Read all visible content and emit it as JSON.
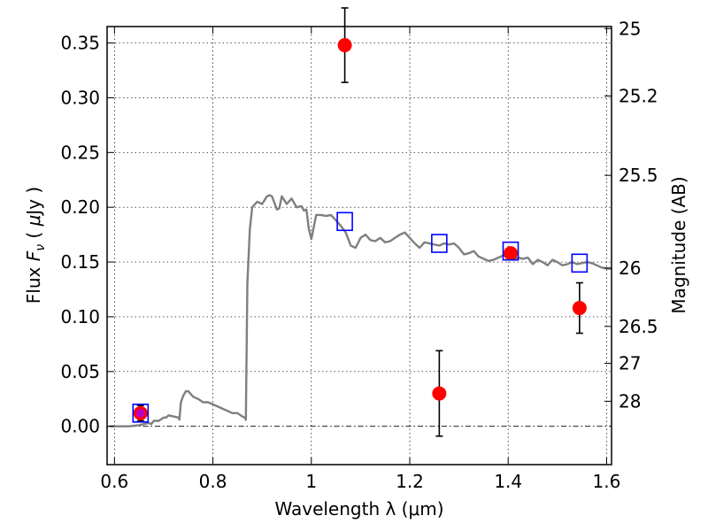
{
  "chart_data": {
    "type": "scatter",
    "xlabel": "Wavelength  λ (μm)",
    "ylabel": "Flux  F_ν  ( μJy )",
    "ylabel_parts": {
      "pre": "Flux  ",
      "sym": "F",
      "sub": "ν",
      "mid": "  ( ",
      "mu": "μ",
      "post": "Jy )"
    },
    "ylabel_right": "Magnitude (AB)",
    "xlim": [
      0.585,
      1.61
    ],
    "ylim": [
      -0.035,
      0.365
    ],
    "grid": true,
    "x_ticks": [
      {
        "value": 0.6,
        "label": "0.6"
      },
      {
        "value": 0.8,
        "label": "0.8"
      },
      {
        "value": 1.0,
        "label": "1"
      },
      {
        "value": 1.2,
        "label": "1.2"
      },
      {
        "value": 1.4,
        "label": "1.4"
      },
      {
        "value": 1.6,
        "label": "1.6"
      }
    ],
    "y_ticks": [
      {
        "value": 0.0,
        "label": "0.00"
      },
      {
        "value": 0.05,
        "label": "0.05"
      },
      {
        "value": 0.1,
        "label": "0.10"
      },
      {
        "value": 0.15,
        "label": "0.15"
      },
      {
        "value": 0.2,
        "label": "0.20"
      },
      {
        "value": 0.25,
        "label": "0.25"
      },
      {
        "value": 0.3,
        "label": "0.30"
      },
      {
        "value": 0.35,
        "label": "0.35"
      }
    ],
    "y2_ticks": [
      {
        "flux": 0.3631,
        "label": "25"
      },
      {
        "flux": 0.3016,
        "label": "25.2"
      },
      {
        "flux": 0.2291,
        "label": "25.5"
      },
      {
        "flux": 0.1445,
        "label": "26"
      },
      {
        "flux": 0.0912,
        "label": "26.5"
      },
      {
        "flux": 0.0575,
        "label": "27"
      },
      {
        "flux": 0.0229,
        "label": "28"
      }
    ],
    "series": [
      {
        "kind": "line",
        "color": "#7f7f7f",
        "x": [
          0.59,
          0.61,
          0.63,
          0.65,
          0.66,
          0.67,
          0.675,
          0.68,
          0.69,
          0.7,
          0.705,
          0.71,
          0.72,
          0.73,
          0.732,
          0.735,
          0.74,
          0.745,
          0.75,
          0.76,
          0.77,
          0.78,
          0.79,
          0.8,
          0.81,
          0.82,
          0.83,
          0.84,
          0.85,
          0.86,
          0.865,
          0.867,
          0.87,
          0.875,
          0.88,
          0.89,
          0.9,
          0.91,
          0.915,
          0.92,
          0.93,
          0.935,
          0.94,
          0.95,
          0.96,
          0.97,
          0.98,
          0.985,
          0.99,
          0.995,
          1.0,
          1.01,
          1.02,
          1.03,
          1.04,
          1.05,
          1.06,
          1.07,
          1.08,
          1.09,
          1.1,
          1.11,
          1.12,
          1.13,
          1.14,
          1.15,
          1.16,
          1.17,
          1.18,
          1.19,
          1.2,
          1.21,
          1.22,
          1.23,
          1.24,
          1.25,
          1.26,
          1.27,
          1.28,
          1.29,
          1.3,
          1.31,
          1.32,
          1.33,
          1.34,
          1.35,
          1.36,
          1.37,
          1.38,
          1.39,
          1.4,
          1.41,
          1.42,
          1.43,
          1.44,
          1.45,
          1.46,
          1.47,
          1.48,
          1.49,
          1.5,
          1.51,
          1.52,
          1.53,
          1.54,
          1.55,
          1.56,
          1.57,
          1.58,
          1.59,
          1.6,
          1.61
        ],
        "y": [
          0.0,
          0.0,
          0.0,
          0.001,
          0.002,
          0.003,
          0.002,
          0.005,
          0.005,
          0.008,
          0.008,
          0.01,
          0.009,
          0.008,
          0.006,
          0.022,
          0.028,
          0.032,
          0.032,
          0.027,
          0.025,
          0.022,
          0.022,
          0.02,
          0.018,
          0.016,
          0.014,
          0.012,
          0.012,
          0.009,
          0.008,
          0.006,
          0.13,
          0.18,
          0.2,
          0.205,
          0.203,
          0.21,
          0.211,
          0.21,
          0.198,
          0.199,
          0.21,
          0.203,
          0.208,
          0.2,
          0.201,
          0.197,
          0.198,
          0.18,
          0.171,
          0.193,
          0.193,
          0.192,
          0.193,
          0.188,
          0.183,
          0.177,
          0.165,
          0.163,
          0.172,
          0.175,
          0.17,
          0.169,
          0.172,
          0.168,
          0.169,
          0.172,
          0.175,
          0.177,
          0.172,
          0.167,
          0.163,
          0.168,
          0.167,
          0.166,
          0.165,
          0.167,
          0.166,
          0.167,
          0.163,
          0.157,
          0.158,
          0.16,
          0.155,
          0.153,
          0.151,
          0.152,
          0.154,
          0.156,
          0.155,
          0.152,
          0.154,
          0.153,
          0.154,
          0.148,
          0.152,
          0.15,
          0.147,
          0.152,
          0.15,
          0.147,
          0.148,
          0.15,
          0.148,
          0.149,
          0.15,
          0.149,
          0.147,
          0.145,
          0.144,
          0.144
        ]
      },
      {
        "kind": "points",
        "color": "#ff0000",
        "marker": "circle",
        "points": [
          {
            "x": 0.653,
            "y": 0.012,
            "err": 0.007
          },
          {
            "x": 1.068,
            "y": 0.348,
            "err": 0.034
          },
          {
            "x": 1.26,
            "y": 0.03,
            "err": 0.039
          },
          {
            "x": 1.405,
            "y": 0.158,
            "err": null
          },
          {
            "x": 1.545,
            "y": 0.108,
            "err": 0.023
          }
        ]
      },
      {
        "kind": "points",
        "color": "#0000ff",
        "marker": "square",
        "points": [
          {
            "x": 0.653,
            "y": 0.012
          },
          {
            "x": 1.068,
            "y": 0.187
          },
          {
            "x": 1.26,
            "y": 0.167
          },
          {
            "x": 1.405,
            "y": 0.16
          },
          {
            "x": 1.545,
            "y": 0.149
          }
        ]
      }
    ],
    "reference_line": {
      "y": 0.0,
      "style": "dash-dot",
      "color": "#000000"
    }
  }
}
